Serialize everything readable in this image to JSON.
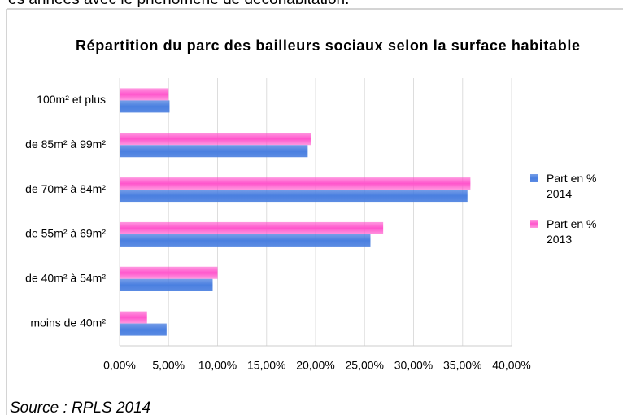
{
  "header_text": "es années avec le phénomène de décohabitation.",
  "source": "Source : RPLS 2014",
  "chart_data": {
    "type": "hbar",
    "title": "Répartition du parc des bailleurs sociaux selon la surface habitable",
    "categories": [
      "100m² et plus",
      "de 85m² à 99m²",
      "de 70m² à 84m²",
      "de 55m² à 69m²",
      "de 40m² à 54m²",
      "moins de 40m²"
    ],
    "series": [
      {
        "name": "Part en % 2014",
        "color": "#4a7fe0",
        "values": [
          5.1,
          19.2,
          35.5,
          25.6,
          9.5,
          4.8
        ]
      },
      {
        "name": "Part en % 2013",
        "color": "#ff55cc",
        "values": [
          5.0,
          19.5,
          35.8,
          26.9,
          10.0,
          2.8
        ]
      }
    ],
    "xlim": [
      0,
      40
    ],
    "xticks": [
      {
        "value": 0,
        "label": "0,00%"
      },
      {
        "value": 5,
        "label": "5,00%"
      },
      {
        "value": 10,
        "label": "10,00%"
      },
      {
        "value": 15,
        "label": "15,00%"
      },
      {
        "value": 20,
        "label": "20,00%"
      },
      {
        "value": 25,
        "label": "25,00%"
      },
      {
        "value": 30,
        "label": "30,00%"
      },
      {
        "value": 35,
        "label": "35,00%"
      },
      {
        "value": 40,
        "label": "40,00%"
      }
    ],
    "grid": true,
    "legend": "right"
  }
}
